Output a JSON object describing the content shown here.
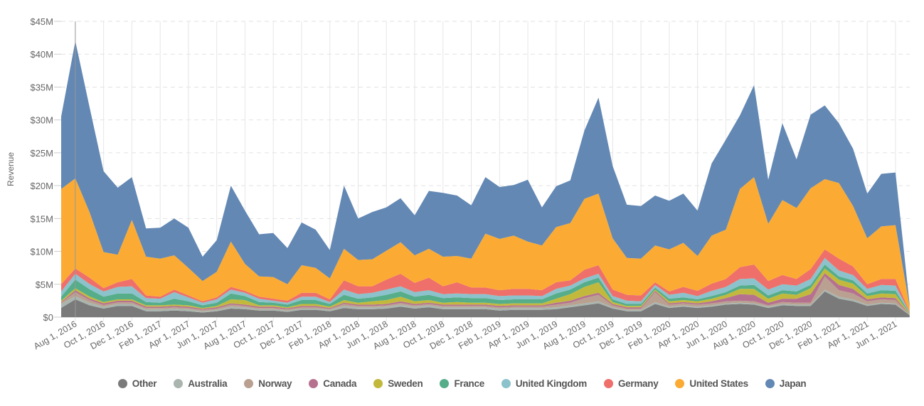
{
  "chart_data": {
    "type": "area",
    "stacked": true,
    "ylabel": "Revenue",
    "xlabel": "",
    "ylim": [
      0,
      45
    ],
    "y_unit": "$M",
    "y_ticks": [
      "$0",
      "$5M",
      "$10M",
      "$15M",
      "$20M",
      "$25M",
      "$30M",
      "$35M",
      "$40M",
      "$45M"
    ],
    "x_tick_labels": [
      "Aug 1, 2016",
      "Oct 1, 2016",
      "Dec 1, 2016",
      "Feb 1, 2017",
      "Apr 1, 2017",
      "Jun 1, 2017",
      "Aug 1, 2017",
      "Oct 1, 2017",
      "Dec 1, 2017",
      "Feb 1, 2018",
      "Apr 1, 2018",
      "Jun 1, 2018",
      "Aug 1, 2018",
      "Oct 1, 2018",
      "Dec 1, 2018",
      "Feb 1, 2019",
      "Apr 1, 2019",
      "Jun 1, 2019",
      "Aug 1, 2019",
      "Oct 1, 2019",
      "Dec 1, 2019",
      "Feb 1, 2020",
      "Apr 1, 2020",
      "Jun 1, 2020",
      "Aug 1, 2020",
      "Oct 1, 2020",
      "Dec 1, 2020",
      "Feb 1, 2021",
      "Apr 1, 2021",
      "Jun 1, 2021"
    ],
    "x": [
      "2016-07",
      "2016-08",
      "2016-09",
      "2016-10",
      "2016-11",
      "2016-12",
      "2017-01",
      "2017-02",
      "2017-03",
      "2017-04",
      "2017-05",
      "2017-06",
      "2017-07",
      "2017-08",
      "2017-09",
      "2017-10",
      "2017-11",
      "2017-12",
      "2018-01",
      "2018-02",
      "2018-03",
      "2018-04",
      "2018-05",
      "2018-06",
      "2018-07",
      "2018-08",
      "2018-09",
      "2018-10",
      "2018-11",
      "2018-12",
      "2019-01",
      "2019-02",
      "2019-03",
      "2019-04",
      "2019-05",
      "2019-06",
      "2019-07",
      "2019-08",
      "2019-09",
      "2019-10",
      "2019-11",
      "2019-12",
      "2020-01",
      "2020-02",
      "2020-03",
      "2020-04",
      "2020-05",
      "2020-06",
      "2020-07",
      "2020-08",
      "2020-09",
      "2020-10",
      "2020-11",
      "2020-12",
      "2021-01",
      "2021-02",
      "2021-03",
      "2021-04",
      "2021-05",
      "2021-06",
      "2021-07"
    ],
    "grid": true,
    "legend_position": "bottom",
    "series": [
      {
        "name": "Other",
        "color": "#7a7a7a",
        "values": [
          1.4,
          2.7,
          1.8,
          1.3,
          1.7,
          1.7,
          0.9,
          0.9,
          1.0,
          0.9,
          0.7,
          0.9,
          1.3,
          1.2,
          1.0,
          1.0,
          0.8,
          1.1,
          1.1,
          0.9,
          1.4,
          1.2,
          1.2,
          1.3,
          1.6,
          1.3,
          1.5,
          1.2,
          1.2,
          1.2,
          1.2,
          1.0,
          1.1,
          1.1,
          1.1,
          1.2,
          1.5,
          1.8,
          2.1,
          1.3,
          0.9,
          0.9,
          2.0,
          1.4,
          1.6,
          1.4,
          1.6,
          1.9,
          2.0,
          1.9,
          1.4,
          1.8,
          1.7,
          1.7,
          3.9,
          2.8,
          2.4,
          1.7,
          2.0,
          1.9,
          0.3
        ]
      },
      {
        "name": "Australia",
        "color": "#a9b5ae",
        "values": [
          0.6,
          0.5,
          0.4,
          0.3,
          0.3,
          0.3,
          0.3,
          0.3,
          0.3,
          0.3,
          0.2,
          0.2,
          0.3,
          0.3,
          0.2,
          0.2,
          0.2,
          0.2,
          0.2,
          0.2,
          0.3,
          0.3,
          0.3,
          0.3,
          0.3,
          0.3,
          0.3,
          0.3,
          0.3,
          0.3,
          0.3,
          0.3,
          0.3,
          0.3,
          0.3,
          0.3,
          0.3,
          0.3,
          0.3,
          0.2,
          0.2,
          0.2,
          0.3,
          0.2,
          0.2,
          0.2,
          0.2,
          0.2,
          0.2,
          0.2,
          0.2,
          0.2,
          0.2,
          0.2,
          0.3,
          0.3,
          0.3,
          0.2,
          0.2,
          0.2,
          0.05
        ]
      },
      {
        "name": "Norway",
        "color": "#b9a090",
        "values": [
          0.2,
          0.6,
          0.4,
          0.25,
          0.25,
          0.25,
          0.2,
          0.2,
          0.2,
          0.2,
          0.2,
          0.2,
          0.3,
          0.2,
          0.2,
          0.2,
          0.2,
          0.2,
          0.2,
          0.15,
          0.3,
          0.2,
          0.2,
          0.2,
          0.25,
          0.2,
          0.2,
          0.2,
          0.2,
          0.2,
          0.2,
          0.2,
          0.2,
          0.2,
          0.2,
          0.4,
          0.4,
          0.8,
          1.0,
          0.3,
          0.2,
          0.2,
          1.5,
          0.3,
          0.3,
          0.3,
          0.3,
          0.3,
          0.3,
          0.3,
          0.2,
          0.3,
          0.3,
          0.3,
          2.0,
          1.0,
          0.9,
          0.5,
          0.5,
          0.5,
          0.05
        ]
      },
      {
        "name": "Canada",
        "color": "#b6718f",
        "values": [
          0.1,
          0.3,
          0.25,
          0.25,
          0.25,
          0.25,
          0.2,
          0.2,
          0.2,
          0.2,
          0.15,
          0.2,
          0.2,
          0.2,
          0.2,
          0.2,
          0.15,
          0.2,
          0.2,
          0.15,
          0.2,
          0.2,
          0.2,
          0.2,
          0.25,
          0.2,
          0.2,
          0.2,
          0.2,
          0.2,
          0.2,
          0.2,
          0.2,
          0.2,
          0.2,
          0.3,
          0.3,
          0.3,
          0.3,
          0.2,
          0.2,
          0.2,
          0.2,
          0.2,
          0.2,
          0.2,
          0.3,
          0.5,
          1.0,
          1.0,
          0.4,
          0.5,
          0.6,
          1.3,
          0.5,
          0.8,
          0.7,
          0.3,
          0.3,
          0.3,
          0.05
        ]
      },
      {
        "name": "Sweden",
        "color": "#c2b93c",
        "values": [
          0.2,
          0.3,
          0.3,
          0.2,
          0.2,
          0.2,
          0.2,
          0.2,
          0.2,
          0.2,
          0.15,
          0.2,
          0.6,
          0.7,
          0.2,
          0.2,
          0.15,
          0.3,
          0.3,
          0.2,
          0.4,
          0.3,
          0.5,
          0.6,
          0.7,
          0.4,
          0.4,
          0.3,
          0.4,
          0.3,
          0.3,
          0.3,
          0.3,
          0.3,
          0.3,
          0.6,
          1.0,
          1.4,
          1.6,
          0.3,
          0.2,
          0.2,
          0.2,
          0.3,
          0.3,
          0.3,
          0.4,
          0.5,
          0.8,
          0.9,
          0.6,
          0.8,
          0.6,
          0.9,
          0.7,
          0.8,
          0.8,
          0.5,
          0.6,
          0.6,
          0.1
        ]
      },
      {
        "name": "France",
        "color": "#55ad89",
        "values": [
          0.6,
          1.3,
          1.1,
          0.8,
          0.9,
          0.9,
          0.5,
          0.4,
          0.9,
          0.6,
          0.4,
          0.5,
          0.9,
          0.6,
          0.5,
          0.4,
          0.4,
          0.6,
          0.6,
          0.4,
          0.8,
          0.6,
          0.6,
          0.8,
          0.8,
          0.7,
          0.8,
          0.7,
          0.7,
          0.7,
          0.7,
          0.6,
          0.6,
          0.6,
          0.6,
          0.8,
          0.7,
          0.7,
          0.7,
          0.4,
          0.3,
          0.3,
          0.3,
          0.4,
          0.4,
          0.3,
          0.4,
          0.4,
          0.5,
          0.6,
          0.5,
          0.5,
          0.5,
          0.5,
          0.6,
          0.5,
          0.5,
          0.4,
          0.5,
          0.5,
          0.1
        ]
      },
      {
        "name": "United Kingdom",
        "color": "#8bc2cb",
        "values": [
          0.8,
          0.9,
          0.8,
          0.8,
          1.0,
          1.1,
          0.6,
          0.6,
          1.0,
          0.6,
          0.4,
          0.5,
          0.6,
          0.5,
          0.5,
          0.3,
          0.3,
          0.5,
          0.5,
          0.3,
          0.8,
          0.7,
          0.7,
          0.8,
          0.8,
          0.7,
          0.7,
          0.6,
          0.6,
          0.6,
          0.6,
          0.6,
          0.6,
          0.6,
          0.5,
          0.7,
          0.6,
          0.6,
          0.6,
          0.5,
          0.5,
          0.4,
          0.4,
          0.6,
          0.7,
          0.5,
          0.8,
          0.8,
          1.0,
          1.0,
          0.9,
          0.9,
          0.9,
          0.9,
          1.0,
          0.9,
          0.8,
          0.7,
          0.8,
          0.8,
          0.1
        ]
      },
      {
        "name": "Germany",
        "color": "#ef6f6a",
        "values": [
          1.1,
          0.8,
          0.95,
          0.5,
          0.7,
          1.1,
          0.4,
          0.3,
          0.4,
          0.3,
          0.2,
          0.3,
          0.4,
          0.3,
          0.3,
          0.3,
          0.3,
          0.6,
          0.6,
          0.4,
          1.4,
          1.2,
          1.0,
          1.5,
          1.9,
          1.4,
          1.9,
          1.2,
          1.7,
          1.0,
          1.0,
          0.9,
          1.0,
          1.0,
          0.9,
          1.0,
          0.8,
          1.3,
          1.3,
          1.0,
          0.9,
          0.9,
          0.4,
          0.5,
          0.9,
          0.8,
          1.1,
          1.2,
          1.8,
          2.1,
          1.3,
          1.4,
          1.0,
          1.5,
          1.3,
          1.8,
          1.3,
          0.7,
          0.9,
          1.0,
          0.1
        ]
      },
      {
        "name": "United States",
        "color": "#fbab33",
        "values": [
          14.5,
          13.7,
          10.0,
          5.5,
          4.2,
          9.0,
          5.9,
          5.8,
          5.2,
          4.2,
          3.1,
          3.9,
          6.9,
          4.1,
          3.1,
          3.3,
          2.5,
          4.2,
          3.8,
          3.2,
          4.8,
          4.0,
          4.1,
          4.4,
          4.8,
          4.2,
          4.4,
          4.5,
          4.0,
          4.4,
          8.2,
          7.8,
          8.1,
          7.2,
          6.8,
          8.4,
          8.7,
          10.8,
          10.9,
          7.8,
          5.6,
          5.6,
          5.6,
          6.4,
          6.7,
          5.3,
          7.3,
          7.5,
          11.9,
          13.3,
          8.7,
          11.4,
          10.8,
          12.3,
          10.7,
          11.5,
          9.2,
          7.0,
          8.0,
          8.2,
          0.8
        ]
      },
      {
        "name": "Japan",
        "color": "#6388b4",
        "values": [
          11.0,
          20.9,
          16.0,
          12.3,
          10.2,
          6.5,
          4.3,
          4.7,
          5.6,
          6.1,
          3.7,
          4.8,
          8.5,
          8.1,
          6.4,
          6.7,
          5.5,
          6.5,
          5.8,
          4.3,
          9.6,
          6.3,
          7.2,
          6.6,
          6.7,
          6.1,
          8.8,
          9.7,
          9.2,
          8.1,
          8.6,
          7.9,
          7.7,
          9.4,
          5.8,
          6.2,
          6.5,
          10.4,
          14.6,
          11.0,
          8.1,
          8.0,
          7.6,
          7.4,
          7.5,
          6.9,
          11.0,
          13.7,
          11.2,
          14.0,
          6.7,
          11.7,
          7.4,
          11.2,
          11.2,
          9.1,
          8.7,
          6.8,
          8.0,
          8.0,
          0.3
        ]
      }
    ]
  }
}
